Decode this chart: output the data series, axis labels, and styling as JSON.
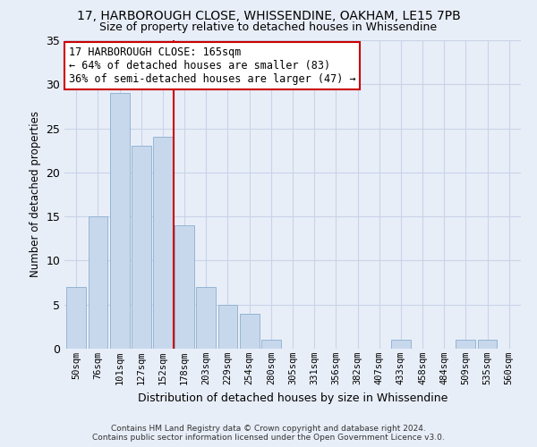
{
  "title": "17, HARBOROUGH CLOSE, WHISSENDINE, OAKHAM, LE15 7PB",
  "subtitle": "Size of property relative to detached houses in Whissendine",
  "xlabel": "Distribution of detached houses by size in Whissendine",
  "ylabel": "Number of detached properties",
  "categories": [
    "50sqm",
    "76sqm",
    "101sqm",
    "127sqm",
    "152sqm",
    "178sqm",
    "203sqm",
    "229sqm",
    "254sqm",
    "280sqm",
    "305sqm",
    "331sqm",
    "356sqm",
    "382sqm",
    "407sqm",
    "433sqm",
    "458sqm",
    "484sqm",
    "509sqm",
    "535sqm",
    "560sqm"
  ],
  "values": [
    7,
    15,
    29,
    23,
    24,
    14,
    7,
    5,
    4,
    1,
    0,
    0,
    0,
    0,
    0,
    1,
    0,
    0,
    1,
    1,
    0
  ],
  "bar_color": "#c8d8ec",
  "bar_edge_color": "#8aaece",
  "property_line_color": "#cc0000",
  "annotation_text": "17 HARBOROUGH CLOSE: 165sqm\n← 64% of detached houses are smaller (83)\n36% of semi-detached houses are larger (47) →",
  "annotation_box_color": "#ffffff",
  "annotation_box_edge_color": "#cc0000",
  "grid_color": "#c8d4e8",
  "background_color": "#e8eef8",
  "ylim": [
    0,
    35
  ],
  "yticks": [
    0,
    5,
    10,
    15,
    20,
    25,
    30,
    35
  ],
  "footer_line1": "Contains HM Land Registry data © Crown copyright and database right 2024.",
  "footer_line2": "Contains public sector information licensed under the Open Government Licence v3.0."
}
